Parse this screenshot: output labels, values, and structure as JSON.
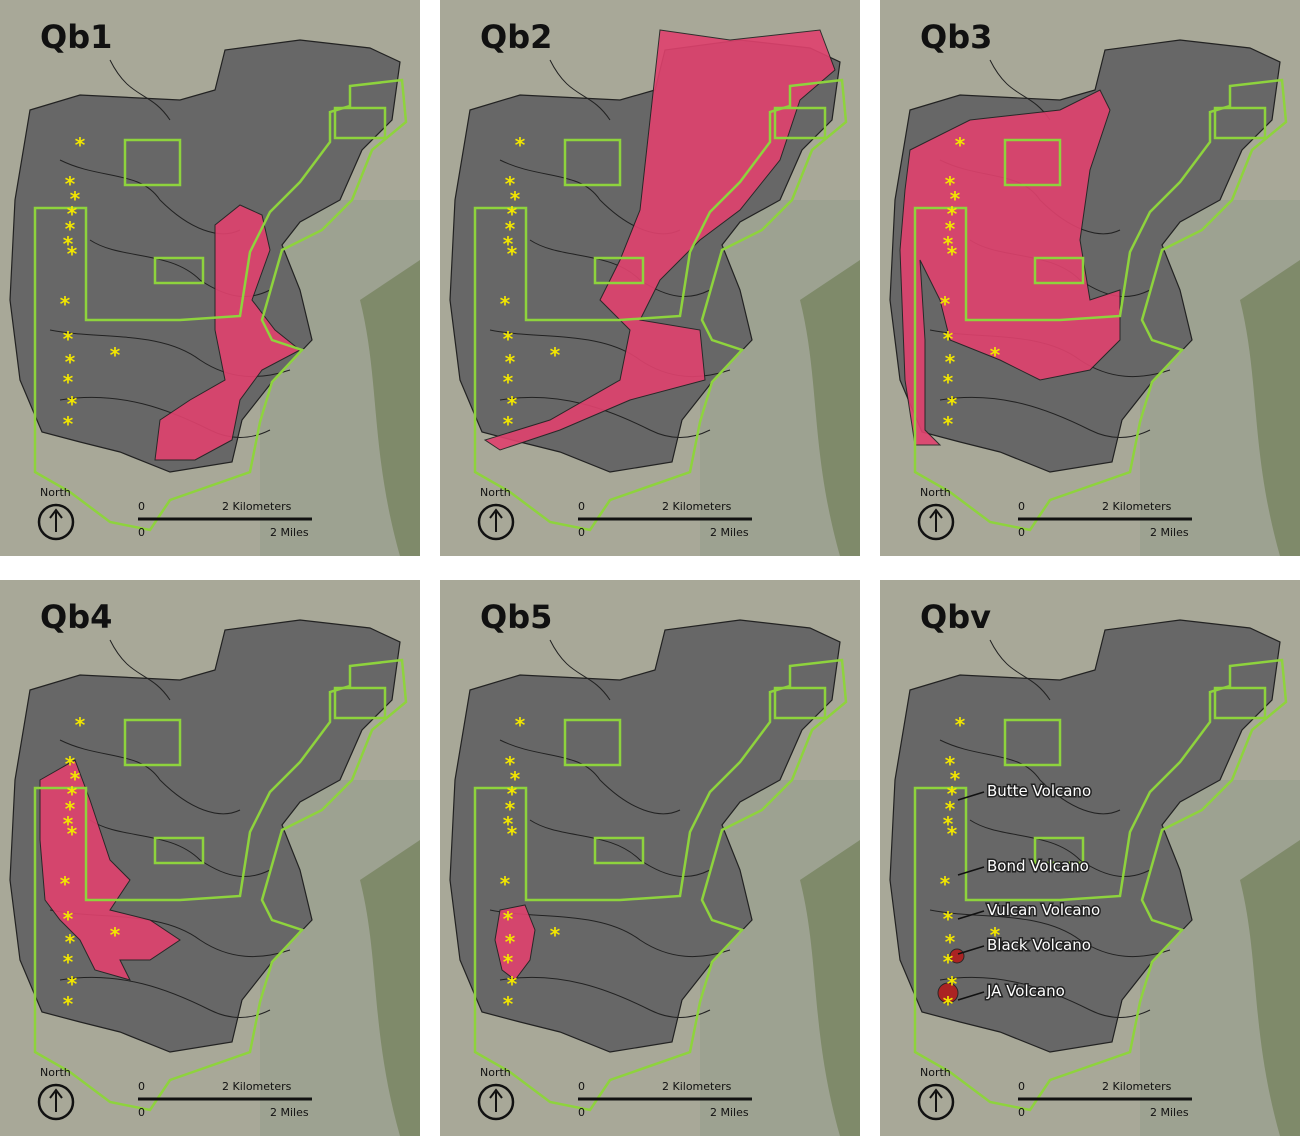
{
  "panels": [
    {
      "title": "Qb1",
      "north": "North",
      "scale": {
        "km_zero": "0",
        "km": "2 Kilometers",
        "mi_zero": "0",
        "mi": "2 Miles"
      }
    },
    {
      "title": "Qb2",
      "north": "North",
      "scale": {
        "km_zero": "0",
        "km": "2 Kilometers",
        "mi_zero": "0",
        "mi": "2 Miles"
      }
    },
    {
      "title": "Qb3",
      "north": "North",
      "scale": {
        "km_zero": "0",
        "km": "2 Kilometers",
        "mi_zero": "0",
        "mi": "2 Miles"
      }
    },
    {
      "title": "Qb4",
      "north": "North",
      "scale": {
        "km_zero": "0",
        "km": "2 Kilometers",
        "mi_zero": "0",
        "mi": "2 Miles"
      }
    },
    {
      "title": "Qb5",
      "north": "North",
      "scale": {
        "km_zero": "0",
        "km": "2 Kilometers",
        "mi_zero": "0",
        "mi": "2 Miles"
      }
    },
    {
      "title": "Qbv",
      "north": "North",
      "scale": {
        "km_zero": "0",
        "km": "2 Kilometers",
        "mi_zero": "0",
        "mi": "2 Miles"
      },
      "labels": [
        "Butte Volcano",
        "Bond Volcano",
        "Vulcan Volcano",
        "Black Volcano",
        "JA Volcano"
      ]
    }
  ]
}
